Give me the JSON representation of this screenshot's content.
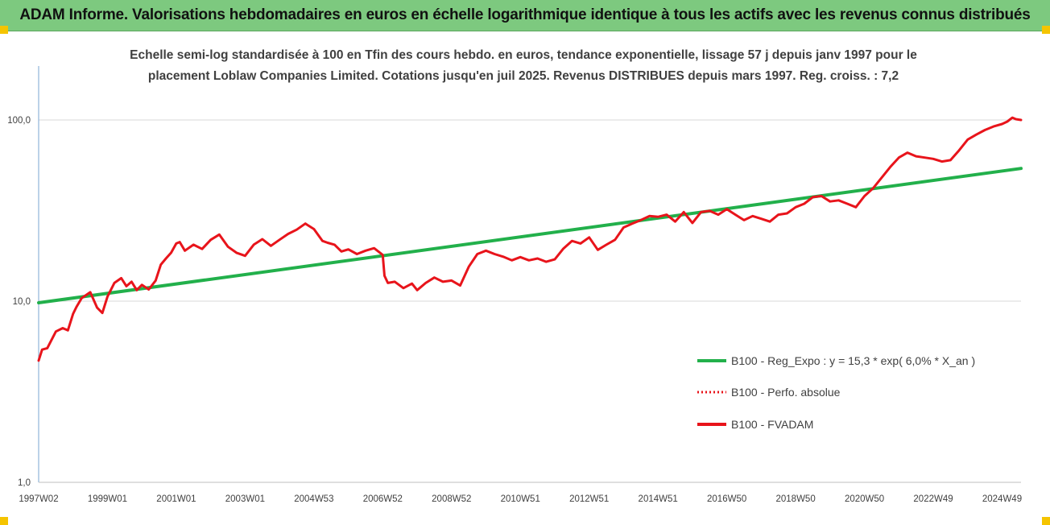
{
  "header": {
    "title": "ADAM Informe. Valorisations hebdomadaires en euros en échelle logarithmique identique à tous les actifs avec les revenus connus distribués"
  },
  "chart_data": {
    "type": "line",
    "title": "Echelle semi-log standardisée à 100 en Tfin des cours hebdo. en euros, tendance exponentielle, lissage 57 j depuis janv 1997 pour le placement Loblaw Companies Limited. Cotations jusqu'en juil 2025. Revenus DISTRIBUES depuis mars 1997. Reg. croiss. : 7,2",
    "title_line1": "Echelle semi-log standardisée à 100 en Tfin des cours hebdo. en euros, tendance exponentielle, lissage 57 j depuis janv 1997 pour le",
    "title_line2": "placement Loblaw Companies Limited. Cotations jusqu'en juil 2025. Revenus DISTRIBUES depuis mars 1997. Reg. croiss. : 7,2",
    "y_scale": "log",
    "ylim": [
      1,
      200
    ],
    "y_ticks": [
      {
        "value": 1,
        "label": "1,0"
      },
      {
        "value": 10,
        "label": "10,0"
      },
      {
        "value": 100,
        "label": "100,0"
      }
    ],
    "x_range": [
      1997.0,
      2025.55
    ],
    "x_ticks": [
      {
        "value": 1997.0,
        "label": "1997W02"
      },
      {
        "value": 1999.0,
        "label": "1999W01"
      },
      {
        "value": 2001.0,
        "label": "2001W01"
      },
      {
        "value": 2003.0,
        "label": "2003W01"
      },
      {
        "value": 2005.0,
        "label": "2004W53"
      },
      {
        "value": 2007.0,
        "label": "2006W52"
      },
      {
        "value": 2009.0,
        "label": "2008W52"
      },
      {
        "value": 2011.0,
        "label": "2010W51"
      },
      {
        "value": 2013.0,
        "label": "2012W51"
      },
      {
        "value": 2015.0,
        "label": "2014W51"
      },
      {
        "value": 2017.0,
        "label": "2016W50"
      },
      {
        "value": 2019.0,
        "label": "2018W50"
      },
      {
        "value": 2021.0,
        "label": "2020W50"
      },
      {
        "value": 2023.0,
        "label": "2022W49"
      },
      {
        "value": 2025.0,
        "label": "2024W49"
      }
    ],
    "grid": "horizontal",
    "legend_position": "right",
    "series": [
      {
        "name": "B100 - Reg_Expo : y = 15,3 * exp( 6,0% *  X_an )",
        "color": "#22b04b",
        "style": "solid",
        "x": [
          1997.0,
          2025.55
        ],
        "y": [
          9.8,
          54.0
        ]
      },
      {
        "name": "B100 - Perfo. absolue",
        "color": "#e8141b",
        "style": "dotted",
        "x": [],
        "y": []
      },
      {
        "name": "B100 - FVADAM",
        "color": "#e8141b",
        "style": "solid",
        "x": [
          1997.0,
          1997.1,
          1997.25,
          1997.5,
          1997.7,
          1997.85,
          1998.0,
          1998.1,
          1998.25,
          1998.5,
          1998.7,
          1998.85,
          1999.0,
          1999.2,
          1999.4,
          1999.55,
          1999.7,
          1999.85,
          2000.0,
          2000.2,
          2000.4,
          2000.55,
          2000.7,
          2000.85,
          2001.0,
          2001.1,
          2001.25,
          2001.5,
          2001.75,
          2002.0,
          2002.25,
          2002.5,
          2002.75,
          2003.0,
          2003.25,
          2003.5,
          2003.75,
          2004.0,
          2004.25,
          2004.5,
          2004.75,
          2005.0,
          2005.25,
          2005.4,
          2005.6,
          2005.8,
          2006.0,
          2006.25,
          2006.5,
          2006.75,
          2007.0,
          2007.05,
          2007.15,
          2007.35,
          2007.6,
          2007.85,
          2008.0,
          2008.25,
          2008.5,
          2008.75,
          2009.0,
          2009.25,
          2009.5,
          2009.75,
          2010.0,
          2010.25,
          2010.5,
          2010.75,
          2011.0,
          2011.25,
          2011.5,
          2011.75,
          2012.0,
          2012.25,
          2012.5,
          2012.75,
          2013.0,
          2013.25,
          2013.5,
          2013.75,
          2014.0,
          2014.25,
          2014.5,
          2014.75,
          2015.0,
          2015.25,
          2015.5,
          2015.75,
          2016.0,
          2016.25,
          2016.5,
          2016.75,
          2017.0,
          2017.25,
          2017.5,
          2017.75,
          2018.0,
          2018.25,
          2018.5,
          2018.75,
          2019.0,
          2019.25,
          2019.5,
          2019.75,
          2020.0,
          2020.25,
          2020.5,
          2020.75,
          2021.0,
          2021.25,
          2021.5,
          2021.75,
          2022.0,
          2022.25,
          2022.5,
          2022.75,
          2023.0,
          2023.25,
          2023.5,
          2023.75,
          2024.0,
          2024.25,
          2024.5,
          2024.75,
          2025.0,
          2025.15,
          2025.3,
          2025.4,
          2025.55
        ],
        "y": [
          4.7,
          5.4,
          5.5,
          6.8,
          7.1,
          6.9,
          8.5,
          9.3,
          10.4,
          11.2,
          9.2,
          8.6,
          10.6,
          12.6,
          13.4,
          12.1,
          12.8,
          11.5,
          12.3,
          11.6,
          13.0,
          15.9,
          17.2,
          18.5,
          20.8,
          21.2,
          19.0,
          20.5,
          19.4,
          21.8,
          23.3,
          20.0,
          18.5,
          17.8,
          20.5,
          22.0,
          20.2,
          21.8,
          23.5,
          24.8,
          26.8,
          25.0,
          21.5,
          21.0,
          20.5,
          18.8,
          19.3,
          18.2,
          19.0,
          19.6,
          18.0,
          13.8,
          12.6,
          12.8,
          11.8,
          12.5,
          11.5,
          12.6,
          13.5,
          12.8,
          13.0,
          12.2,
          15.5,
          18.2,
          19.0,
          18.2,
          17.6,
          16.8,
          17.5,
          16.8,
          17.2,
          16.5,
          17.0,
          19.5,
          21.5,
          20.8,
          22.5,
          19.2,
          20.5,
          21.8,
          25.5,
          26.8,
          28.0,
          29.5,
          29.2,
          30.0,
          27.5,
          31.0,
          27.0,
          31.0,
          31.5,
          30.0,
          32.2,
          30.0,
          28.0,
          29.5,
          28.5,
          27.5,
          30.0,
          30.5,
          33.0,
          34.5,
          37.5,
          38.0,
          35.5,
          36.0,
          34.5,
          33.0,
          38.0,
          42.0,
          48.0,
          55.0,
          62.0,
          66.0,
          63.0,
          62.0,
          61.0,
          59.0,
          60.0,
          68.0,
          78.0,
          83.0,
          88.0,
          92.0,
          95.0,
          98.0,
          103.0,
          101.0,
          100.0
        ]
      }
    ]
  }
}
